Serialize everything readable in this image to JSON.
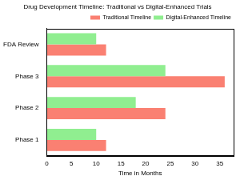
{
  "chart_data": {
    "type": "bar",
    "orientation": "horizontal",
    "title": "Drug Development Timeline: Traditional vs Digital-Enhanced Trials",
    "x_label": "Time in Months",
    "categories": [
      "Phase 1",
      "Phase 2",
      "Phase 3",
      "FDA Review"
    ],
    "series": [
      {
        "name": "Traditional Timeline",
        "color": "#fa8072",
        "values": [
          12,
          24,
          36,
          12
        ]
      },
      {
        "name": "Digital-Enhanced Timeline",
        "color": "#90ee90",
        "values": [
          10,
          18,
          24,
          10
        ]
      }
    ],
    "xlim": [
      0,
      37.8
    ],
    "xticks": [
      0,
      5,
      10,
      15,
      20,
      25,
      30,
      35
    ],
    "grid": false,
    "legend": "upper right"
  }
}
